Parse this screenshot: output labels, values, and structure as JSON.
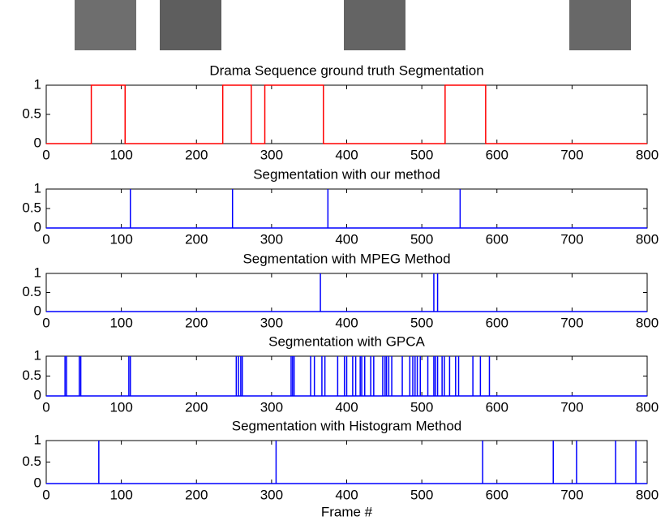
{
  "chart_data": [
    {
      "type": "line",
      "title": "Drama Sequence ground truth Segmentation",
      "color": "#ff0000",
      "x": [
        0,
        60,
        60,
        105,
        105,
        235,
        235,
        273,
        273,
        291,
        291,
        369,
        369,
        531,
        531,
        585,
        585,
        800
      ],
      "values": [
        0,
        0,
        1,
        1,
        0,
        0,
        1,
        1,
        0,
        0,
        1,
        1,
        0,
        0,
        1,
        1,
        0,
        0
      ],
      "xlim": [
        0,
        800
      ],
      "ylim": [
        0,
        1
      ],
      "xticks": [
        0,
        100,
        200,
        300,
        400,
        500,
        600,
        700,
        800
      ],
      "yticks": [
        0,
        0.5,
        1
      ]
    },
    {
      "type": "stem",
      "title": "Segmentation with our method",
      "color": "#0000ff",
      "x": [
        112,
        248,
        375,
        551
      ],
      "values": [
        1,
        1,
        1,
        1
      ],
      "xlim": [
        0,
        800
      ],
      "ylim": [
        0,
        1
      ],
      "xticks": [
        0,
        100,
        200,
        300,
        400,
        500,
        600,
        700,
        800
      ],
      "yticks": [
        0,
        0.5,
        1
      ]
    },
    {
      "type": "stem",
      "title": "Segmentation with MPEG Method",
      "color": "#0000ff",
      "x": [
        365,
        516,
        521
      ],
      "values": [
        1,
        1,
        1
      ],
      "xlim": [
        0,
        800
      ],
      "ylim": [
        0,
        1
      ],
      "xticks": [
        0,
        100,
        200,
        300,
        400,
        500,
        600,
        700,
        800
      ],
      "yticks": [
        0,
        0.5,
        1
      ]
    },
    {
      "type": "stem",
      "title": "Segmentation with GPCA",
      "color": "#0000ff",
      "x": [
        25,
        27,
        44,
        46,
        110,
        112,
        253,
        256,
        259,
        261,
        326,
        328,
        330,
        352,
        357,
        367,
        371,
        388,
        397,
        400,
        408,
        412,
        418,
        420,
        424,
        432,
        436,
        448,
        451,
        453,
        456,
        460,
        474,
        484,
        488,
        491,
        494,
        498,
        508,
        516,
        518,
        521,
        527,
        530,
        537,
        545,
        549,
        568,
        578,
        590
      ],
      "values": [
        1,
        1,
        1,
        1,
        1,
        1,
        1,
        1,
        1,
        1,
        1,
        1,
        1,
        1,
        1,
        1,
        1,
        1,
        1,
        1,
        1,
        1,
        1,
        1,
        1,
        1,
        1,
        1,
        1,
        1,
        1,
        1,
        1,
        1,
        1,
        1,
        1,
        1,
        1,
        1,
        1,
        1,
        1,
        1,
        1,
        1,
        1,
        1,
        1,
        1
      ],
      "xlim": [
        0,
        800
      ],
      "ylim": [
        0,
        1
      ],
      "xticks": [
        0,
        100,
        200,
        300,
        400,
        500,
        600,
        700,
        800
      ],
      "yticks": [
        0,
        0.5,
        1
      ]
    },
    {
      "type": "stem",
      "title": "Segmentation with Histogram Method",
      "xlabel": "Frame #",
      "color": "#0000ff",
      "x": [
        70,
        306,
        581,
        675,
        706,
        758,
        785
      ],
      "values": [
        1,
        1,
        1,
        1,
        1,
        1,
        1
      ],
      "xlim": [
        0,
        800
      ],
      "ylim": [
        0,
        1
      ],
      "xticks": [
        0,
        100,
        200,
        300,
        400,
        500,
        600,
        700,
        800
      ],
      "yticks": [
        0,
        0.5,
        1
      ]
    }
  ]
}
